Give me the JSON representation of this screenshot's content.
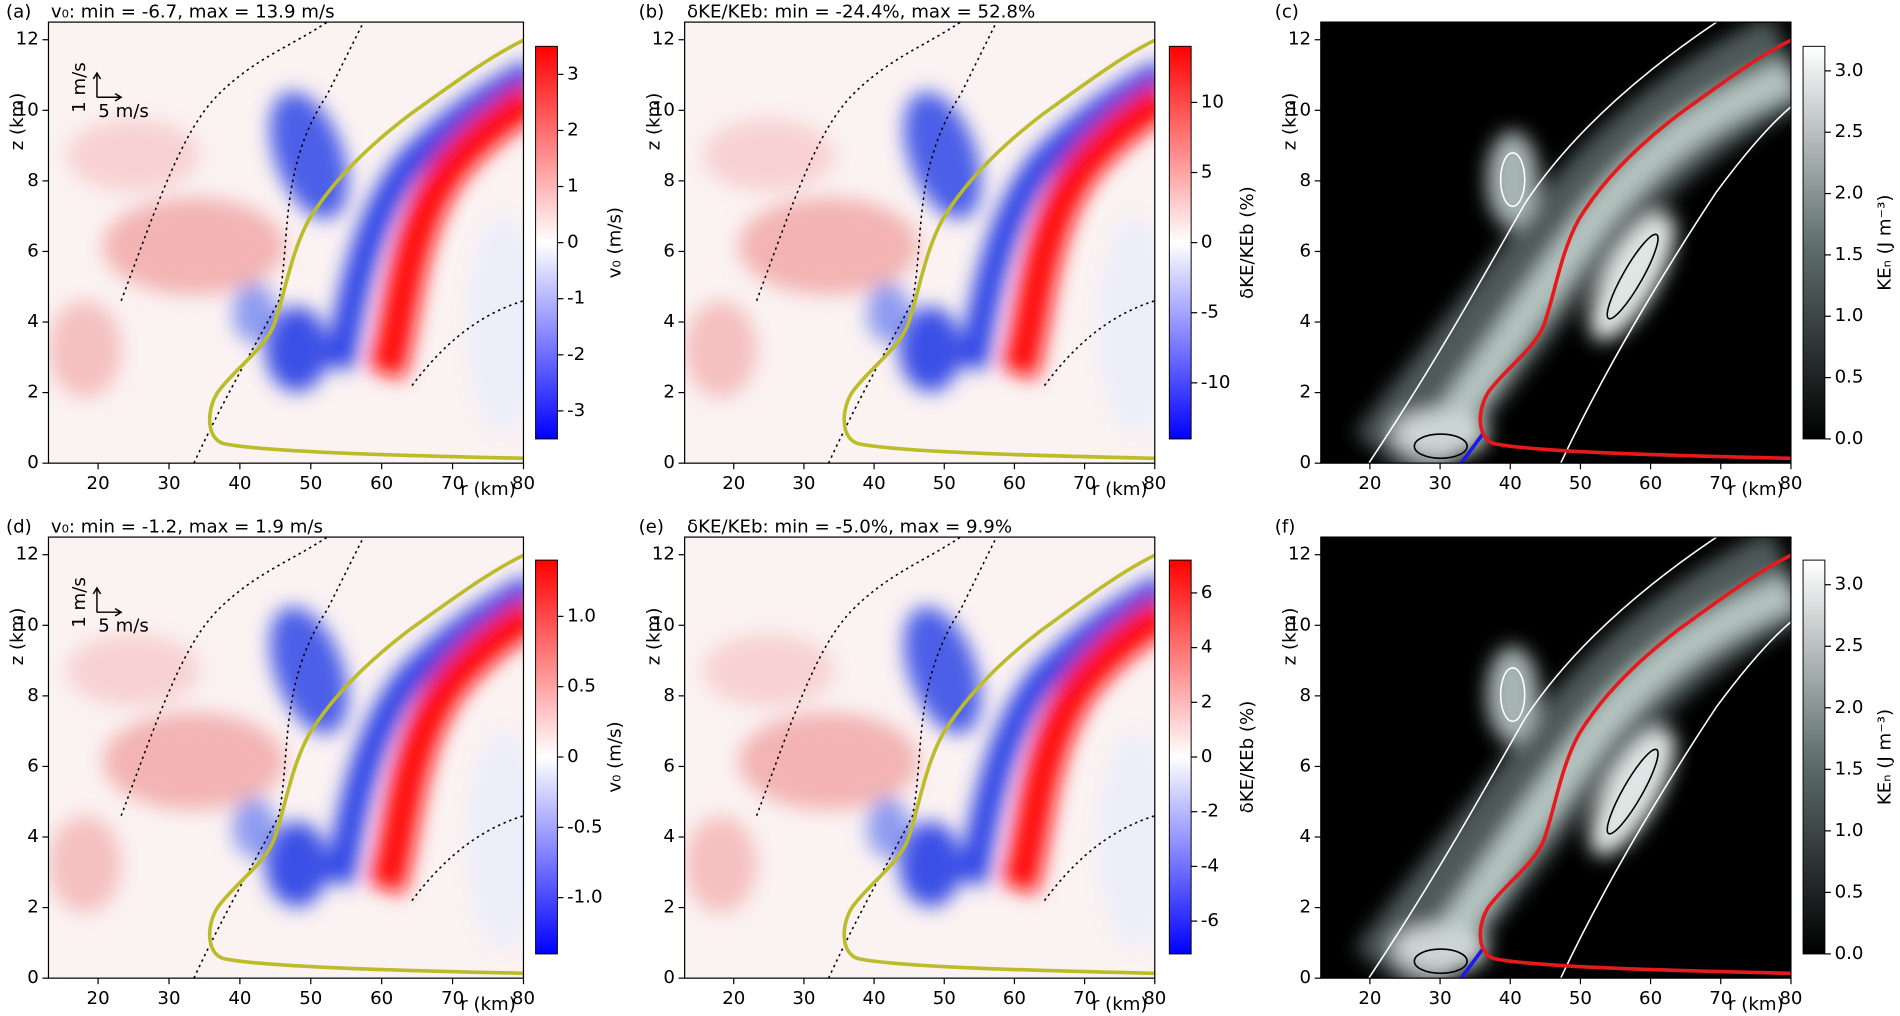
{
  "chart_data": [
    {
      "type": "contour",
      "panel_label": "(a)",
      "title": "v₀: min = -6.7, max = 13.9 m/s",
      "xlabel": "r (km)",
      "ylabel": "z (km)",
      "xlim": [
        13,
        80
      ],
      "ylim": [
        0,
        12.5
      ],
      "xticks": [
        20,
        30,
        40,
        50,
        60,
        70,
        80
      ],
      "yticks": [
        0,
        2,
        4,
        6,
        8,
        10,
        12
      ],
      "colormap": "bwr",
      "curve_color": "#bcbc2a",
      "annotations": [
        "1 m/s",
        "5 m/s"
      ],
      "colorbar": {
        "label": "v₀ (m/s)",
        "lim": [
          -3.5,
          3.5
        ],
        "ticks": [
          -3,
          -2,
          -1,
          0,
          1,
          2,
          3
        ]
      }
    },
    {
      "type": "contour",
      "panel_label": "(b)",
      "title": "δKE/KEb: min = -24.4%, max = 52.8%",
      "xlabel": "r (km)",
      "ylabel": "z (km)",
      "xlim": [
        13,
        80
      ],
      "ylim": [
        0,
        12.5
      ],
      "xticks": [
        20,
        30,
        40,
        50,
        60,
        70,
        80
      ],
      "yticks": [
        0,
        2,
        4,
        6,
        8,
        10,
        12
      ],
      "colormap": "bwr",
      "curve_color": "#bcbc2a",
      "colorbar": {
        "label": "δKE/KEb (%)",
        "lim": [
          -14,
          14
        ],
        "ticks": [
          -10,
          -5,
          0,
          5,
          10
        ]
      }
    },
    {
      "type": "contour",
      "panel_label": "(c)",
      "xlabel": "r (km)",
      "ylabel": "z (km)",
      "xlim": [
        13,
        80
      ],
      "ylim": [
        0,
        12.5
      ],
      "xticks": [
        20,
        30,
        40,
        50,
        60,
        70,
        80
      ],
      "yticks": [
        0,
        2,
        4,
        6,
        8,
        10,
        12
      ],
      "colormap": "gray",
      "curve_color": "#e41a1c",
      "colorbar": {
        "label": "KEₙ (J m⁻³)",
        "lim": [
          0,
          3.2
        ],
        "ticks": [
          {
            "value": 0,
            "label": "0.0"
          },
          0.5,
          {
            "value": 1,
            "label": "1.0"
          },
          1.5,
          {
            "value": 2,
            "label": "2.0"
          },
          2.5,
          {
            "value": 3,
            "label": "3.0"
          }
        ]
      }
    },
    {
      "type": "contour",
      "panel_label": "(d)",
      "title": "v₀: min = -1.2, max = 1.9 m/s",
      "xlabel": "r (km)",
      "ylabel": "z (km)",
      "xlim": [
        13,
        80
      ],
      "ylim": [
        0,
        12.5
      ],
      "xticks": [
        20,
        30,
        40,
        50,
        60,
        70,
        80
      ],
      "yticks": [
        0,
        2,
        4,
        6,
        8,
        10,
        12
      ],
      "colormap": "bwr",
      "curve_color": "#bcbc2a",
      "annotations": [
        "1 m/s",
        "5 m/s"
      ],
      "colorbar": {
        "label": "v₀ (m/s)",
        "lim": [
          -1.4,
          1.4
        ],
        "ticks": [
          {
            "value": -1,
            "label": "-1.0"
          },
          -0.5,
          0,
          0.5,
          {
            "value": 1,
            "label": "1.0"
          }
        ]
      }
    },
    {
      "type": "contour",
      "panel_label": "(e)",
      "title": "δKE/KEb: min = -5.0%, max = 9.9%",
      "xlabel": "r (km)",
      "ylabel": "z (km)",
      "xlim": [
        13,
        80
      ],
      "ylim": [
        0,
        12.5
      ],
      "xticks": [
        20,
        30,
        40,
        50,
        60,
        70,
        80
      ],
      "yticks": [
        0,
        2,
        4,
        6,
        8,
        10,
        12
      ],
      "colormap": "bwr",
      "curve_color": "#bcbc2a",
      "colorbar": {
        "label": "δKE/KEb (%)",
        "lim": [
          -7.2,
          7.2
        ],
        "ticks": [
          -6,
          -4,
          -2,
          0,
          2,
          4,
          6
        ]
      }
    },
    {
      "type": "contour",
      "panel_label": "(f)",
      "xlabel": "r (km)",
      "ylabel": "z (km)",
      "xlim": [
        13,
        80
      ],
      "ylim": [
        0,
        12.5
      ],
      "xticks": [
        20,
        30,
        40,
        50,
        60,
        70,
        80
      ],
      "yticks": [
        0,
        2,
        4,
        6,
        8,
        10,
        12
      ],
      "colormap": "gray",
      "curve_color": "#e41a1c",
      "colorbar": {
        "label": "KEₙ (J m⁻³)",
        "lim": [
          0,
          3.2
        ],
        "ticks": [
          {
            "value": 0,
            "label": "0.0"
          },
          0.5,
          {
            "value": 1,
            "label": "1.0"
          },
          1.5,
          {
            "value": 2,
            "label": "2.0"
          },
          2.5,
          {
            "value": 3,
            "label": "3.0"
          }
        ]
      }
    }
  ]
}
